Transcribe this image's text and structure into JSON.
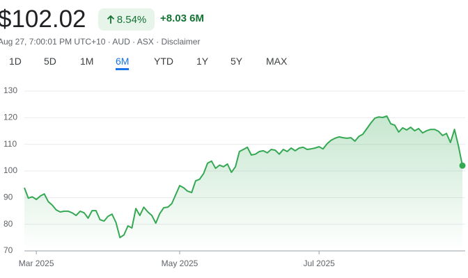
{
  "header": {
    "price": "$102.02",
    "change_pct": "8.54%",
    "change": "+8.03",
    "period": "6M",
    "subline": "Aug 27, 7:00:01 PM UTC+10 · AUD · ASX · Disclaimer"
  },
  "tabs": [
    "1D",
    "5D",
    "1M",
    "6M",
    "YTD",
    "1Y",
    "5Y",
    "MAX"
  ],
  "active_tab": 3,
  "chart_data": {
    "type": "line",
    "color": "#34a853",
    "values": [
      93.7,
      89.8,
      90.3,
      89.3,
      90.6,
      91.4,
      88.5,
      87.2,
      85.4,
      84.6,
      84.9,
      84.9,
      84.3,
      83.3,
      84.9,
      84.3,
      82.3,
      85.1,
      85.1,
      81.7,
      81.2,
      83,
      83.8,
      80.7,
      75,
      76,
      79.4,
      78.6,
      85.9,
      83.3,
      86.4,
      84.6,
      83.3,
      80.4,
      84,
      86.2,
      86.4,
      87.7,
      91.1,
      94.5,
      93.7,
      92.4,
      91.9,
      96.3,
      96.9,
      99,
      102.9,
      103.7,
      101,
      102.2,
      101.6,
      102.6,
      99.5,
      101.6,
      107.3,
      108.1,
      108.9,
      106,
      106.3,
      107.3,
      107.6,
      106.8,
      108.1,
      107.8,
      106.3,
      108.1,
      107.3,
      108.6,
      107.6,
      108.6,
      108.9,
      108.1,
      108.3,
      108.6,
      109.1,
      108.3,
      110.2,
      111.5,
      112.3,
      112.8,
      112.5,
      112.3,
      112.5,
      111.2,
      113,
      113.8,
      115.9,
      118,
      119.8,
      120.3,
      120.1,
      120.6,
      117.7,
      117.2,
      114.6,
      116.2,
      115.4,
      116.4,
      115.1,
      115.9,
      114.3,
      115.1,
      115.6,
      115.6,
      114.9,
      113.3,
      114.1,
      110.7,
      115.6,
      109.4,
      102.02
    ],
    "xlim": [
      0,
      110
    ],
    "xticks": [
      {
        "value": 3,
        "label": "Mar 2025"
      },
      {
        "value": 39,
        "label": "May 2025"
      },
      {
        "value": 74,
        "label": "Jul 2025"
      }
    ],
    "ylim": [
      70,
      130
    ],
    "yticks": [
      70,
      80,
      90,
      100,
      110,
      120,
      130
    ],
    "grid": true
  }
}
